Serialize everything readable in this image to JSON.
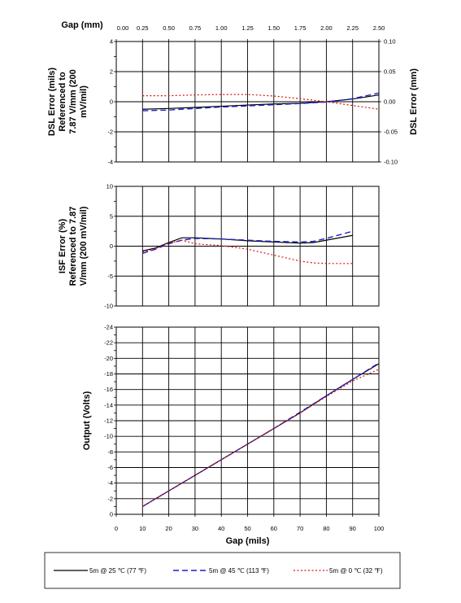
{
  "chart_data": [
    {
      "id": "dsl",
      "type": "line",
      "top_axis_label": "Gap (mm)",
      "top_ticks": [
        "0.00",
        "0.25",
        "0.50",
        "0.75",
        "1.00",
        "1.25",
        "1.50",
        "1.75",
        "2.00",
        "2.25",
        "2.50"
      ],
      "ylabel": "DSL Error (mils) Referenced to 7.87 V/mm (200 mV/mil)",
      "ylabel_lines": [
        "DSL Error (mils)",
        "Referenced to",
        "7.87 V/mm (200",
        "mV/mil)"
      ],
      "ylim": [
        -4,
        4
      ],
      "y_ticks": [
        "4",
        "2",
        "0",
        "-2",
        "-4"
      ],
      "y2label": "DSL Error (mm)",
      "y2lim": [
        -0.1,
        0.1
      ],
      "y2_ticks": [
        "0.10",
        "0.05",
        "0.00",
        "-0.05",
        "-0.10"
      ],
      "xlim": [
        0,
        100
      ],
      "series": [
        {
          "name": "5m @ 25 ℃ (77 ℉)",
          "color": "#000000",
          "dash": "solid",
          "x": [
            10,
            20,
            30,
            40,
            50,
            60,
            70,
            80,
            90,
            100
          ],
          "y": [
            -0.5,
            -0.45,
            -0.38,
            -0.3,
            -0.22,
            -0.15,
            -0.1,
            0.0,
            0.18,
            0.45
          ]
        },
        {
          "name": "5m @ 45 ℃ (113 ℉)",
          "color": "#1f1fcc",
          "dash": "dashed",
          "x": [
            10,
            20,
            30,
            40,
            50,
            60,
            70,
            80,
            90,
            100
          ],
          "y": [
            -0.6,
            -0.55,
            -0.45,
            -0.35,
            -0.28,
            -0.2,
            -0.12,
            -0.02,
            0.2,
            0.58
          ]
        },
        {
          "name": "5m @ 0 ℃ (32 ℉)",
          "color": "#dd1111",
          "dash": "dotted",
          "x": [
            10,
            20,
            30,
            40,
            50,
            60,
            70,
            80,
            90,
            100
          ],
          "y": [
            0.4,
            0.4,
            0.45,
            0.48,
            0.48,
            0.38,
            0.2,
            0.0,
            -0.25,
            -0.5
          ]
        }
      ]
    },
    {
      "id": "isf",
      "type": "line",
      "ylabel": "ISF Error (%) Referenced to 7.87 V/mm (200 mV/mil)",
      "ylabel_lines": [
        "ISF Error (%)",
        "Referenced to 7.87",
        "V/mm (200 mV/mil)"
      ],
      "ylim": [
        -10,
        10
      ],
      "y_ticks": [
        "10",
        "5",
        "0",
        "-5",
        "-10"
      ],
      "xlim": [
        0,
        100
      ],
      "series": [
        {
          "name": "5m @ 25 ℃ (77 ℉)",
          "color": "#000000",
          "dash": "solid",
          "x": [
            10,
            15,
            20,
            25,
            30,
            40,
            50,
            60,
            70,
            75,
            80,
            90
          ],
          "y": [
            -0.8,
            -0.3,
            0.6,
            1.4,
            1.4,
            1.2,
            0.9,
            0.7,
            0.5,
            0.6,
            1.0,
            1.8
          ]
        },
        {
          "name": "5m @ 45 ℃ (113 ℉)",
          "color": "#1f1fcc",
          "dash": "dashed",
          "x": [
            10,
            15,
            20,
            25,
            30,
            40,
            50,
            60,
            70,
            75,
            80,
            90
          ],
          "y": [
            -1.2,
            -0.5,
            0.4,
            1.0,
            1.3,
            1.2,
            1.0,
            0.8,
            0.7,
            0.8,
            1.3,
            2.5
          ]
        },
        {
          "name": "5m @ 0 ℃ (32 ℉)",
          "color": "#dd1111",
          "dash": "dotted",
          "x": [
            10,
            15,
            20,
            25,
            30,
            40,
            50,
            60,
            70,
            75,
            80,
            90
          ],
          "y": [
            -1.0,
            -0.4,
            0.5,
            1.0,
            0.4,
            0.1,
            -0.5,
            -1.5,
            -2.5,
            -2.8,
            -2.9,
            -2.9
          ]
        }
      ]
    },
    {
      "id": "output",
      "type": "line",
      "ylabel": "Output (Volts)",
      "ylim": [
        0,
        -24
      ],
      "y_ticks": [
        "-24",
        "-22",
        "-20",
        "-18",
        "-16",
        "-14",
        "-12",
        "-10",
        "-8",
        "-6",
        "-4",
        "-2",
        "0"
      ],
      "xlabel": "Gap (mils)",
      "xlim": [
        0,
        100
      ],
      "x_ticks": [
        "0",
        "10",
        "20",
        "30",
        "40",
        "50",
        "60",
        "70",
        "80",
        "90",
        "100"
      ],
      "series": [
        {
          "name": "5m @ 25 ℃ (77 ℉)",
          "color": "#000000",
          "dash": "solid",
          "x": [
            10,
            20,
            30,
            40,
            50,
            60,
            70,
            80,
            90,
            100
          ],
          "y": [
            -1.0,
            -3.0,
            -5.0,
            -7.0,
            -9.0,
            -11.0,
            -13.0,
            -15.2,
            -17.3,
            -19.3
          ]
        },
        {
          "name": "5m @ 45 ℃ (113 ℉)",
          "color": "#1f1fcc",
          "dash": "dashed",
          "x": [
            10,
            20,
            30,
            40,
            50,
            60,
            70,
            80,
            90,
            100
          ],
          "y": [
            -1.0,
            -3.0,
            -5.0,
            -7.0,
            -9.0,
            -11.0,
            -13.1,
            -15.2,
            -17.3,
            -19.4
          ]
        },
        {
          "name": "5m @ 0 ℃ (32 ℉)",
          "color": "#dd1111",
          "dash": "dotted",
          "x": [
            10,
            20,
            30,
            40,
            50,
            60,
            70,
            80,
            90,
            100
          ],
          "y": [
            -1.0,
            -3.0,
            -5.0,
            -7.0,
            -9.0,
            -11.0,
            -13.0,
            -15.1,
            -17.1,
            -18.6
          ]
        }
      ]
    }
  ],
  "legend": [
    {
      "label": "5m @ 25 ℃ (77 ℉)",
      "color": "#000000",
      "dash": "solid"
    },
    {
      "label": "5m @ 45 ℃ (113 ℉)",
      "color": "#1f1fcc",
      "dash": "dashed"
    },
    {
      "label": "5m @ 0 ℃ (32 ℉)",
      "color": "#dd1111",
      "dash": "dotted"
    }
  ]
}
